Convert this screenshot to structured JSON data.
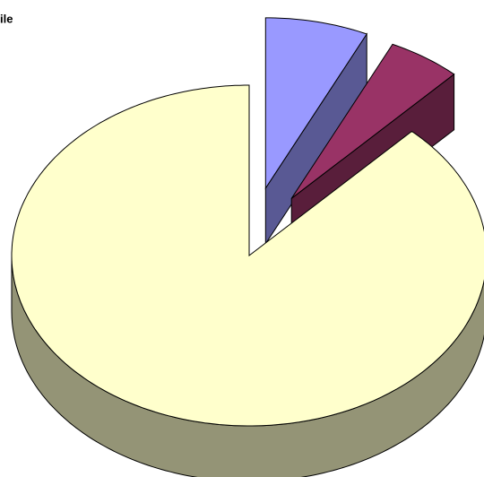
{
  "chart_data": {
    "type": "pie3d",
    "title": "ile",
    "values": [
      7,
      5,
      88
    ],
    "colors": [
      "#9999ff",
      "#993366",
      "#ffffcc"
    ],
    "exploded": [
      true,
      true,
      false
    ]
  }
}
